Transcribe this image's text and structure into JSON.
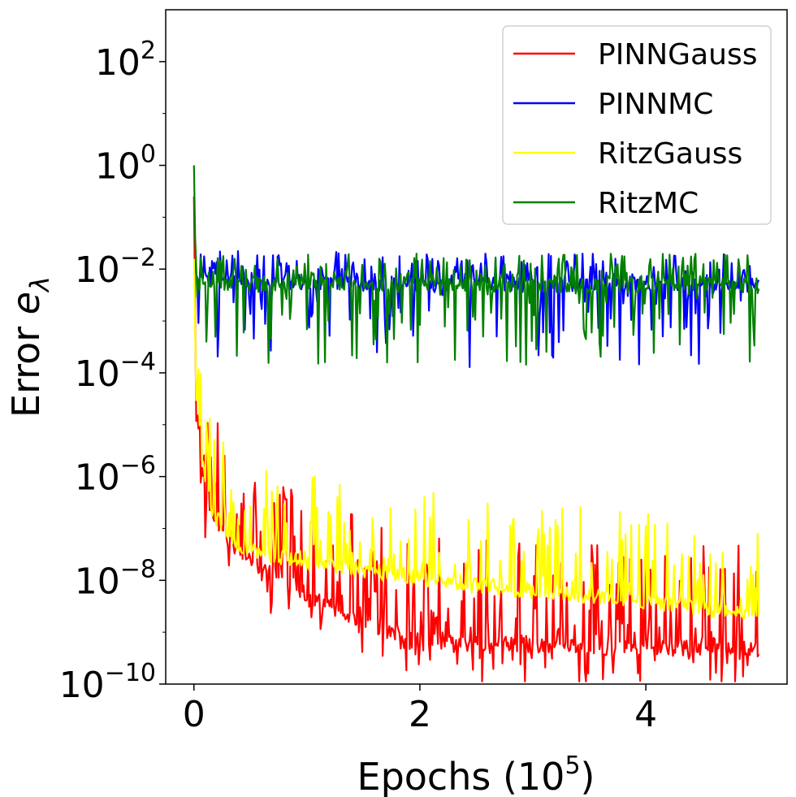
{
  "chart_data": {
    "type": "line",
    "xlabel": "Epochs (10",
    "xlabel_exponent": "5",
    "xlabel_suffix": ")",
    "ylabel": "Error ",
    "ylabel_symbol": "e",
    "ylabel_subscript": "λ",
    "y_scale": "log",
    "xlim": [
      -0.25,
      5.25
    ],
    "ylim_exponent": [
      -10,
      3
    ],
    "x_ticks": [
      0,
      2,
      4
    ],
    "x_tick_labels": [
      "0",
      "2",
      "4"
    ],
    "y_ticks_exponent": [
      -10,
      -8,
      -6,
      -4,
      -2,
      0,
      2
    ],
    "y_tick_base": "10",
    "y_tick_exponents": [
      "−10",
      "−8",
      "−6",
      "−4",
      "−2",
      "0",
      "2"
    ],
    "legend_position": "top-right",
    "series": [
      {
        "name": "PINNGauss",
        "color": "#ff0000",
        "x": [
          0.0,
          0.02,
          0.05,
          0.08,
          0.1,
          0.15,
          0.2,
          0.3,
          0.4,
          0.5,
          0.6,
          0.7,
          0.8,
          0.9,
          1.0,
          1.2,
          1.4,
          1.6,
          1.8,
          2.0,
          2.5,
          3.0,
          3.5,
          4.0,
          4.5,
          5.0
        ],
        "y_log10": [
          -0.6,
          -4.8,
          -5.3,
          -6.0,
          -6.5,
          -6.7,
          -6.9,
          -7.2,
          -7.4,
          -7.6,
          -7.8,
          -7.9,
          -8.0,
          -8.1,
          -8.3,
          -8.5,
          -8.7,
          -8.9,
          -9.0,
          -9.1,
          -9.2,
          -9.25,
          -9.3,
          -9.3,
          -9.3,
          -9.3
        ],
        "noise_up": 2.0,
        "noise_down": 0.8
      },
      {
        "name": "PINNMC",
        "color": "#0000ff",
        "x": [
          0.0,
          0.02,
          0.05,
          0.1,
          1.0,
          2.0,
          3.0,
          4.0,
          5.0
        ],
        "y_log10": [
          -1.8,
          -2.0,
          -2.2,
          -2.2,
          -2.25,
          -2.3,
          -2.3,
          -2.3,
          -2.3
        ],
        "noise_up": 0.6,
        "noise_down": 1.6
      },
      {
        "name": "RitzGauss",
        "color": "#ffff00",
        "x": [
          0.0,
          0.02,
          0.05,
          0.1,
          0.15,
          0.2,
          0.3,
          0.4,
          0.5,
          0.7,
          1.0,
          1.5,
          2.0,
          2.5,
          3.0,
          3.5,
          4.0,
          4.5,
          5.0
        ],
        "y_log10": [
          -1.8,
          -4.5,
          -5.3,
          -6.0,
          -6.6,
          -6.8,
          -7.1,
          -7.3,
          -7.4,
          -7.55,
          -7.65,
          -7.8,
          -7.95,
          -8.1,
          -8.2,
          -8.3,
          -8.4,
          -8.55,
          -8.7
        ],
        "noise_up": 1.7,
        "noise_down": 0.15
      },
      {
        "name": "RitzMC",
        "color": "#008000",
        "x": [
          0.0,
          0.01,
          0.02,
          0.05,
          0.1,
          1.0,
          2.0,
          3.0,
          4.0,
          5.0
        ],
        "y_log10": [
          0.0,
          -1.5,
          -2.2,
          -2.3,
          -2.3,
          -2.3,
          -2.3,
          -2.3,
          -2.3,
          -2.3
        ],
        "noise_up": 0.6,
        "noise_down": 1.6
      }
    ]
  }
}
